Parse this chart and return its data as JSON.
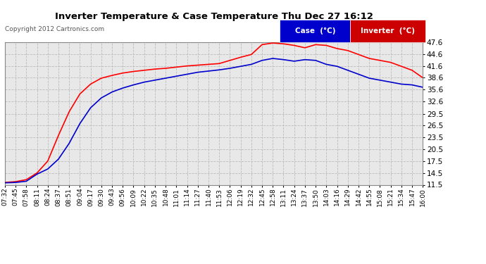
{
  "title": "Inverter Temperature & Case Temperature Thu Dec 27 16:12",
  "copyright": "Copyright 2012 Cartronics.com",
  "background_color": "#ffffff",
  "plot_bg_color": "#e8e8e8",
  "grid_color": "#bbbbbb",
  "ylim": [
    11.5,
    47.6
  ],
  "yticks": [
    11.5,
    14.5,
    17.5,
    20.5,
    23.5,
    26.5,
    29.5,
    32.6,
    35.6,
    38.6,
    41.6,
    44.6,
    47.6
  ],
  "case_color": "#ff0000",
  "inverter_color": "#0000cc",
  "legend_case_bg": "#0000cc",
  "legend_inverter_bg": "#cc0000",
  "xtick_labels": [
    "07:32",
    "07:45",
    "07:58",
    "08:11",
    "08:24",
    "08:37",
    "08:51",
    "09:04",
    "09:17",
    "09:30",
    "09:43",
    "09:56",
    "10:09",
    "10:22",
    "10:35",
    "10:48",
    "11:01",
    "11:14",
    "11:27",
    "11:40",
    "11:53",
    "12:06",
    "12:19",
    "12:32",
    "12:45",
    "12:58",
    "13:11",
    "13:24",
    "13:37",
    "13:50",
    "14:03",
    "14:16",
    "14:29",
    "14:42",
    "14:55",
    "15:08",
    "15:21",
    "15:34",
    "15:47",
    "16:00"
  ],
  "case_temps": [
    12.1,
    12.3,
    12.8,
    14.5,
    17.5,
    24.0,
    30.0,
    34.5,
    37.0,
    38.5,
    39.2,
    39.8,
    40.2,
    40.5,
    40.8,
    41.0,
    41.3,
    41.6,
    41.8,
    42.0,
    42.2,
    43.0,
    43.8,
    44.5,
    47.0,
    47.4,
    47.2,
    46.8,
    46.2,
    47.0,
    46.8,
    46.0,
    45.5,
    44.5,
    43.5,
    43.0,
    42.5,
    41.5,
    40.5,
    38.6
  ],
  "inverter_temps": [
    12.0,
    12.1,
    12.4,
    14.2,
    15.5,
    18.0,
    22.0,
    27.0,
    31.0,
    33.5,
    35.0,
    36.0,
    36.8,
    37.5,
    38.0,
    38.5,
    39.0,
    39.5,
    40.0,
    40.3,
    40.6,
    41.0,
    41.5,
    42.0,
    43.0,
    43.5,
    43.2,
    42.8,
    43.2,
    43.0,
    42.0,
    41.5,
    40.5,
    39.5,
    38.5,
    38.0,
    37.5,
    37.0,
    36.8,
    36.2
  ]
}
